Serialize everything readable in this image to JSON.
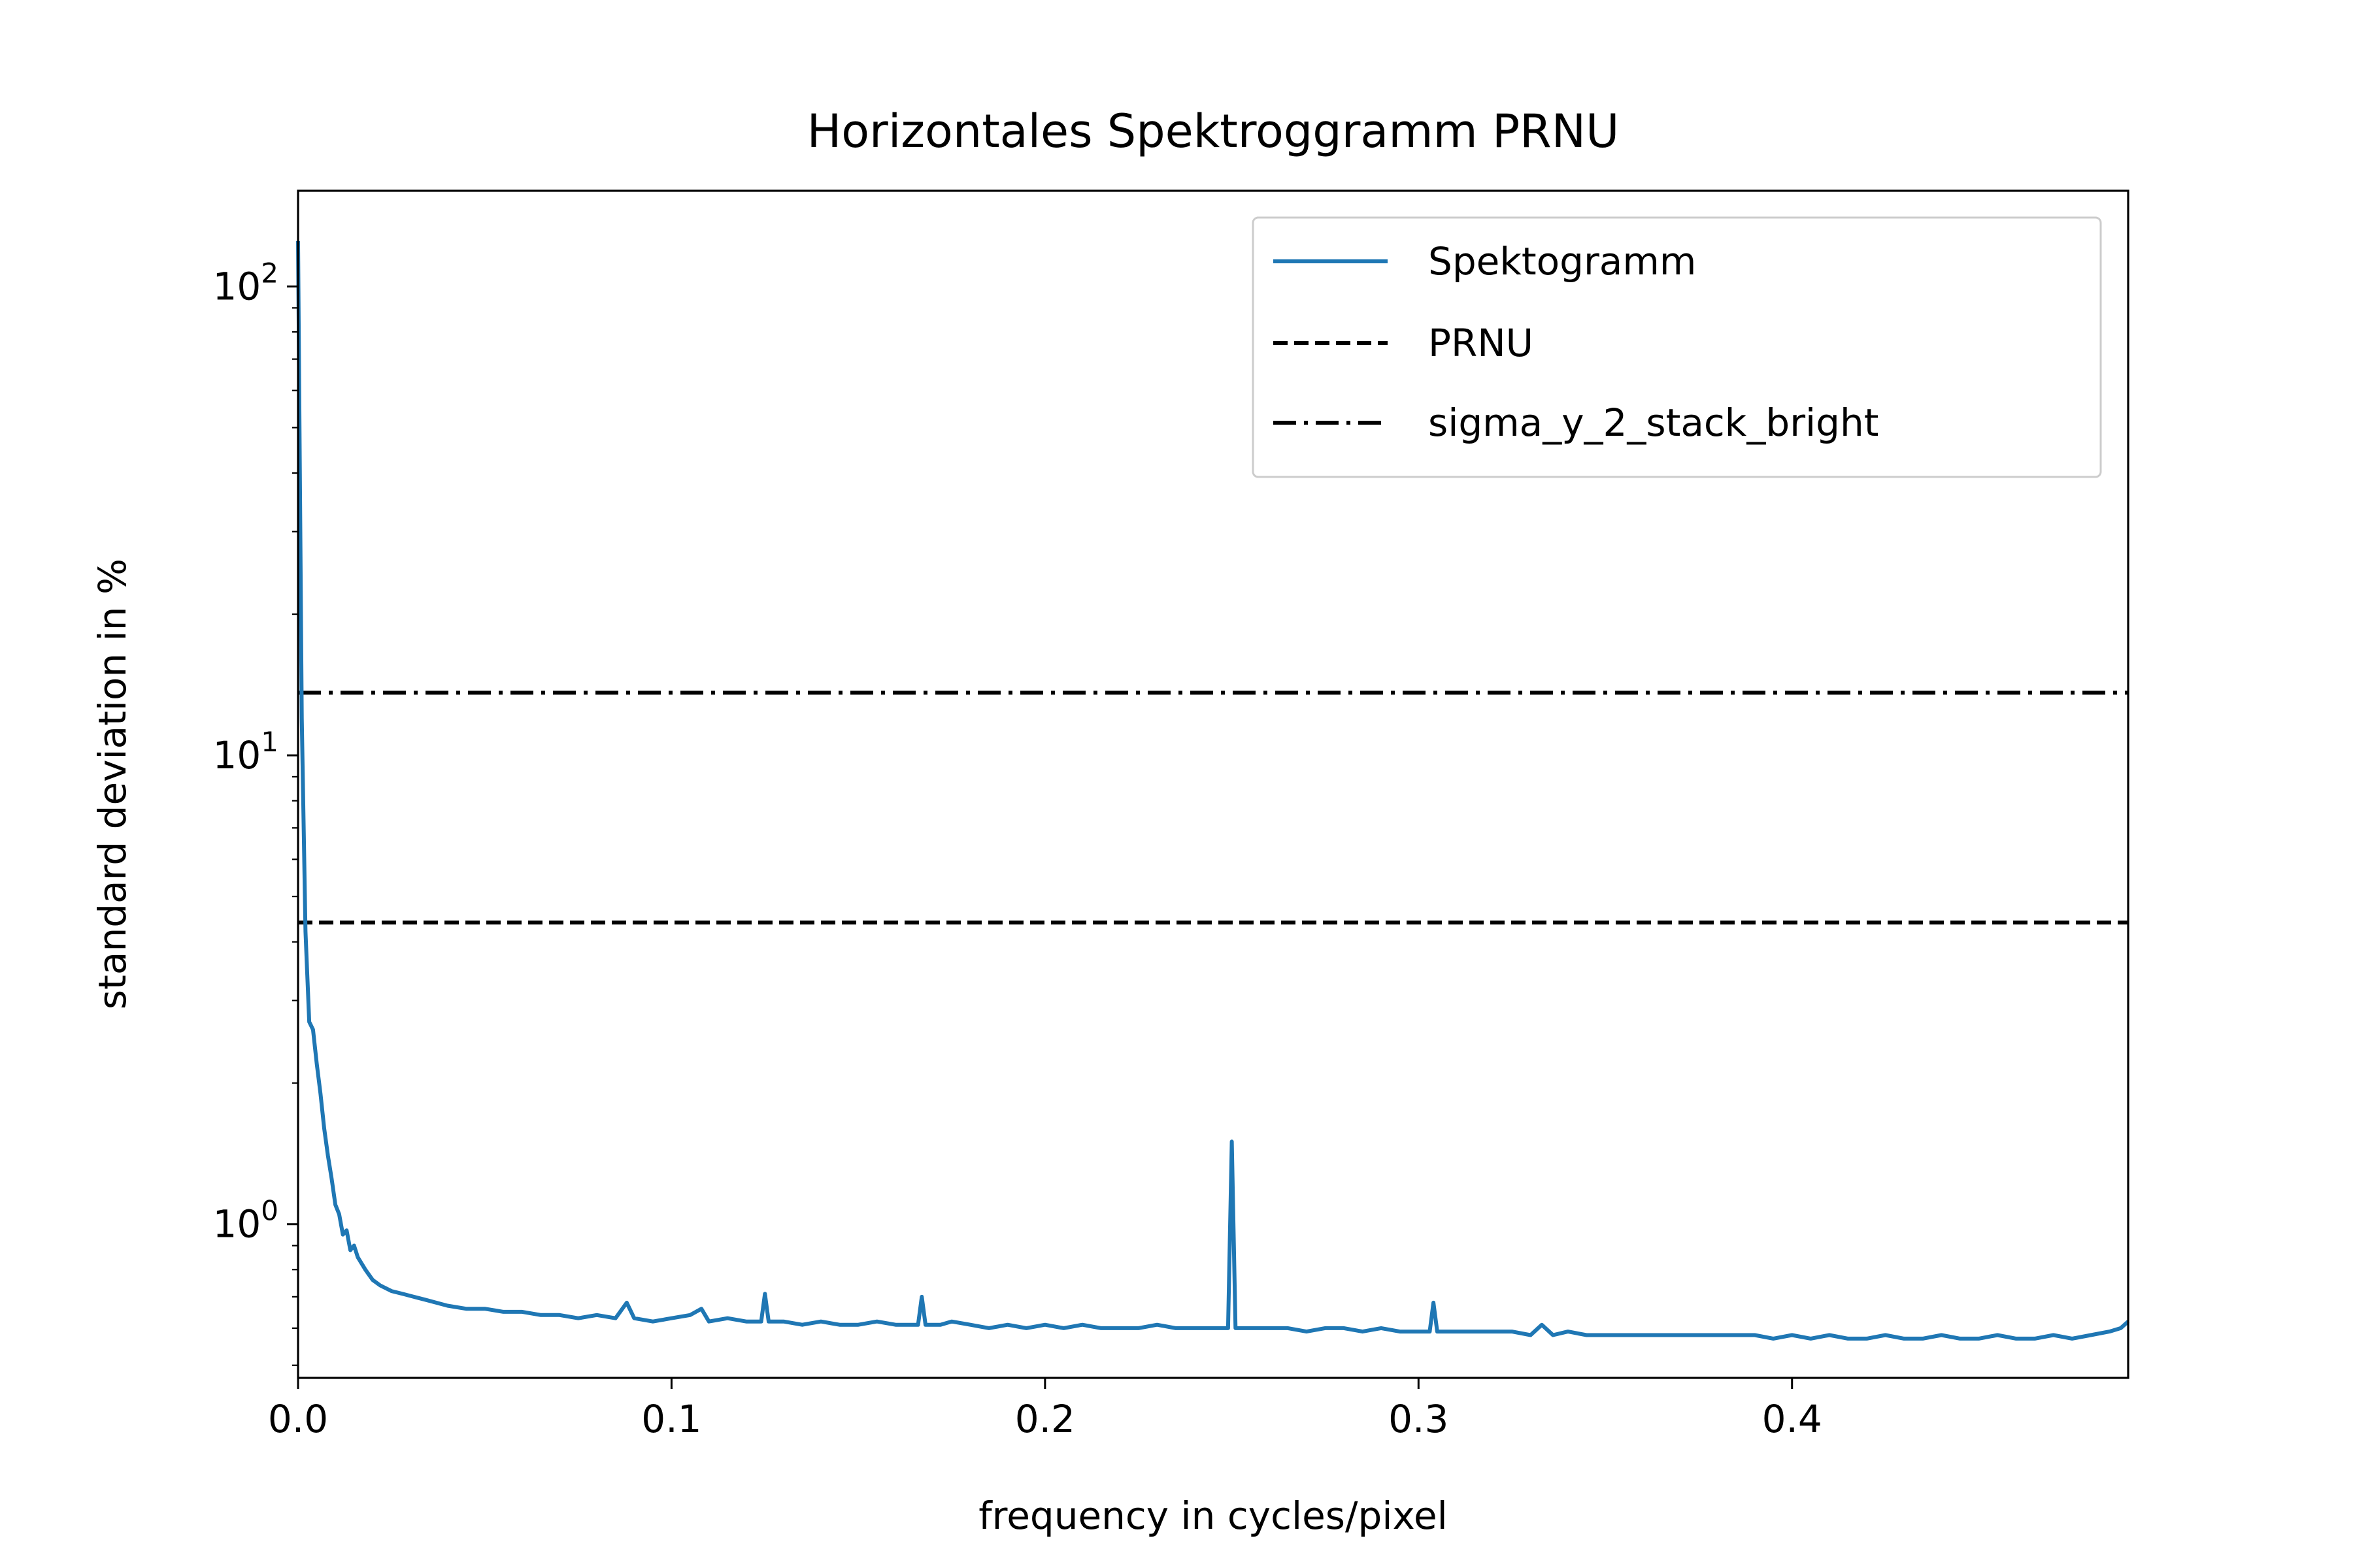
{
  "chart_data": {
    "type": "line",
    "title": "Horizontales Spektroggramm PRNU",
    "xlabel": "frequency in cycles/pixel",
    "ylabel": "standard deviation in %",
    "xlim": [
      0.0,
      0.49
    ],
    "ylim": [
      0.47,
      160
    ],
    "yscale": "log",
    "grid": false,
    "legend_position": "top-right",
    "x_ticks": [
      {
        "value": 0.0,
        "label": "0.0"
      },
      {
        "value": 0.1,
        "label": "0.1"
      },
      {
        "value": 0.2,
        "label": "0.2"
      },
      {
        "value": 0.3,
        "label": "0.3"
      },
      {
        "value": 0.4,
        "label": "0.4"
      }
    ],
    "y_ticks": [
      {
        "value": 1,
        "base": "10",
        "exp": "0"
      },
      {
        "value": 10,
        "base": "10",
        "exp": "1"
      },
      {
        "value": 100,
        "base": "10",
        "exp": "2"
      }
    ],
    "series": [
      {
        "name": "Spektogramm",
        "style": "solid",
        "color": "#1f77b4",
        "x": [
          0.0,
          0.001,
          0.002,
          0.003,
          0.004,
          0.005,
          0.006,
          0.007,
          0.008,
          0.009,
          0.01,
          0.011,
          0.012,
          0.013,
          0.014,
          0.015,
          0.016,
          0.018,
          0.02,
          0.022,
          0.025,
          0.028,
          0.031,
          0.034,
          0.037,
          0.04,
          0.045,
          0.05,
          0.055,
          0.06,
          0.065,
          0.07,
          0.075,
          0.08,
          0.085,
          0.088,
          0.09,
          0.095,
          0.1,
          0.105,
          0.108,
          0.11,
          0.115,
          0.12,
          0.124,
          0.125,
          0.126,
          0.13,
          0.135,
          0.14,
          0.145,
          0.15,
          0.155,
          0.16,
          0.166,
          0.167,
          0.168,
          0.172,
          0.175,
          0.18,
          0.185,
          0.19,
          0.195,
          0.2,
          0.205,
          0.21,
          0.215,
          0.22,
          0.225,
          0.23,
          0.235,
          0.24,
          0.245,
          0.249,
          0.25,
          0.251,
          0.255,
          0.26,
          0.265,
          0.27,
          0.275,
          0.28,
          0.285,
          0.29,
          0.295,
          0.3,
          0.303,
          0.304,
          0.305,
          0.31,
          0.315,
          0.32,
          0.325,
          0.33,
          0.333,
          0.336,
          0.34,
          0.345,
          0.35,
          0.355,
          0.36,
          0.365,
          0.37,
          0.375,
          0.38,
          0.385,
          0.39,
          0.395,
          0.4,
          0.405,
          0.41,
          0.415,
          0.42,
          0.425,
          0.43,
          0.435,
          0.44,
          0.445,
          0.45,
          0.455,
          0.46,
          0.465,
          0.47,
          0.475,
          0.48,
          0.485,
          0.488,
          0.49
        ],
        "y": [
          125,
          12,
          4.2,
          2.7,
          2.6,
          2.2,
          1.9,
          1.6,
          1.4,
          1.25,
          1.1,
          1.05,
          0.95,
          0.97,
          0.88,
          0.9,
          0.85,
          0.8,
          0.76,
          0.74,
          0.72,
          0.71,
          0.7,
          0.69,
          0.68,
          0.67,
          0.66,
          0.66,
          0.65,
          0.65,
          0.64,
          0.64,
          0.63,
          0.64,
          0.63,
          0.68,
          0.63,
          0.62,
          0.63,
          0.64,
          0.66,
          0.62,
          0.63,
          0.62,
          0.62,
          0.71,
          0.62,
          0.62,
          0.61,
          0.62,
          0.61,
          0.61,
          0.62,
          0.61,
          0.61,
          0.7,
          0.61,
          0.61,
          0.62,
          0.61,
          0.6,
          0.61,
          0.6,
          0.61,
          0.6,
          0.61,
          0.6,
          0.6,
          0.6,
          0.61,
          0.6,
          0.6,
          0.6,
          0.6,
          1.5,
          0.6,
          0.6,
          0.6,
          0.6,
          0.59,
          0.6,
          0.6,
          0.59,
          0.6,
          0.59,
          0.59,
          0.59,
          0.68,
          0.59,
          0.59,
          0.59,
          0.59,
          0.59,
          0.58,
          0.61,
          0.58,
          0.59,
          0.58,
          0.58,
          0.58,
          0.58,
          0.58,
          0.58,
          0.58,
          0.58,
          0.58,
          0.58,
          0.57,
          0.58,
          0.57,
          0.58,
          0.57,
          0.57,
          0.58,
          0.57,
          0.57,
          0.58,
          0.57,
          0.57,
          0.58,
          0.57,
          0.57,
          0.58,
          0.57,
          0.58,
          0.59,
          0.6,
          0.62
        ]
      },
      {
        "name": "PRNU",
        "style": "dashed",
        "color": "#000000",
        "y_const": 4.4
      },
      {
        "name": "sigma_y_2_stack_bright",
        "style": "dashdot",
        "color": "#000000",
        "y_const": 13.6
      }
    ]
  }
}
